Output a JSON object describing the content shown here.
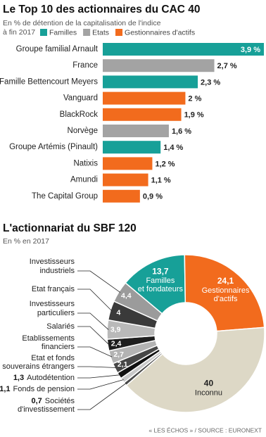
{
  "chart_data": [
    {
      "type": "bar",
      "title": "Le Top 10 des actionnaires du CAC 40",
      "subtitle": [
        "En % de détention de la capitalisation de l'indice",
        "à fin 2017"
      ],
      "categories": [
        "Groupe familial Arnault",
        "France",
        "Famille Bettencourt Meyers",
        "Vanguard",
        "BlackRock",
        "Norvège",
        "Groupe Artémis (Pinault)",
        "Natixis",
        "Amundi",
        "The Capital Group"
      ],
      "series": [
        {
          "name": "Familles",
          "color": "#17a098",
          "values": [
            3.9,
            null,
            2.3,
            null,
            null,
            null,
            1.4,
            null,
            null,
            null
          ],
          "value_labels": [
            "3,9 %",
            null,
            "2,3 %",
            null,
            null,
            null,
            "1,4 %",
            null,
            null,
            null
          ]
        },
        {
          "name": "Etats",
          "color": "#a3a3a3",
          "values": [
            null,
            2.7,
            null,
            null,
            null,
            1.6,
            null,
            null,
            null,
            null
          ],
          "value_labels": [
            null,
            "2,7 %",
            null,
            null,
            null,
            "1,6 %",
            null,
            null,
            null,
            null
          ]
        },
        {
          "name": "Gestionnaires d'actifs",
          "color": "#f26b1d",
          "values": [
            null,
            null,
            null,
            2,
            1.9,
            null,
            null,
            1.2,
            1.1,
            0.9
          ],
          "value_labels": [
            null,
            null,
            null,
            "2 %",
            "1,9 %",
            null,
            null,
            "1,2 %",
            "1,1 %",
            "0,9 %"
          ]
        }
      ]
    },
    {
      "type": "donut",
      "title": "L'actionnariat du SBF 120",
      "subtitle": "En % en 2017",
      "labels": [
        [
          "Familles",
          "et fondateurs"
        ],
        [
          "Gestionnaires",
          "d'actifs"
        ],
        [
          "Inconnu"
        ],
        [
          "Sociétés",
          "d'investissement"
        ],
        [
          "Fonds de pension"
        ],
        [
          "Autodétention"
        ],
        [
          "Etat et fonds",
          "souverains étrangers"
        ],
        [
          "Etablissements",
          "financiers"
        ],
        [
          "Salariés"
        ],
        [
          "Investisseurs",
          "particuliers"
        ],
        [
          "Etat français"
        ],
        [
          "Investisseurs",
          "industriels"
        ]
      ],
      "values": [
        13.7,
        24.1,
        40,
        0.7,
        1.1,
        1.3,
        2.1,
        2.7,
        2.4,
        3.9,
        4,
        4.4
      ],
      "value_labels": [
        "13,7",
        "24,1",
        "40",
        "0,7",
        "1,1",
        "1,3",
        "2,1",
        "2,7",
        "2,4",
        "3,9",
        "4",
        "4,4"
      ],
      "colors": [
        "#17a098",
        "#f26b1d",
        "#ddd8c6",
        "#4a4a4a",
        "#c9c9c9",
        "#111111",
        "#474747",
        "#b3b3b3",
        "#1e1e1e",
        "#b9b9b9",
        "#3a3a3a",
        "#9b9b9b"
      ]
    }
  ],
  "source": "« LES ÉCHOS » / SOURCE : EURONEXT"
}
